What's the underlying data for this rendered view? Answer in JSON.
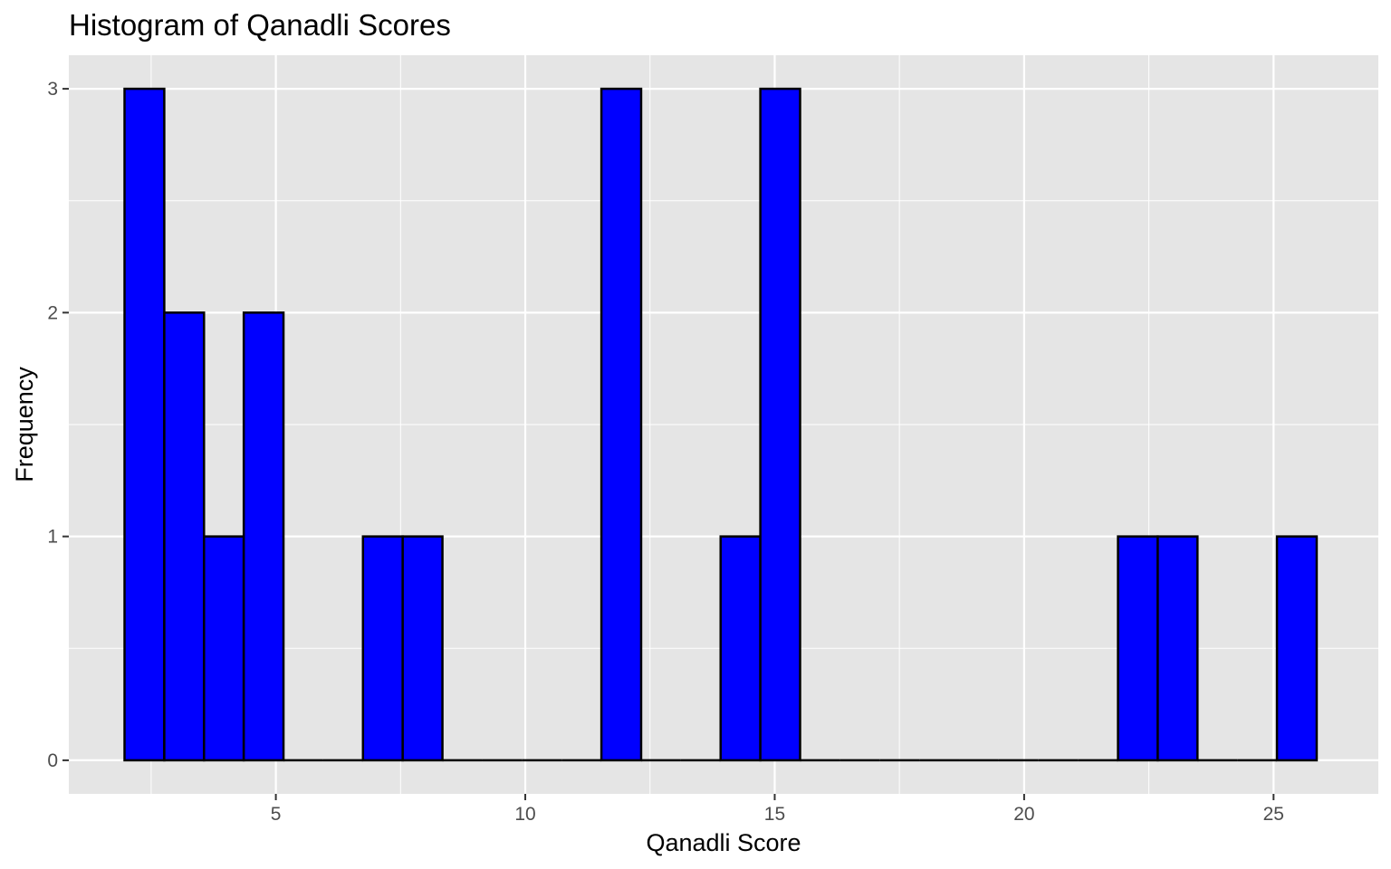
{
  "chart_data": {
    "type": "bar",
    "subtype": "histogram",
    "title": "Histogram of Qanadli Scores",
    "xlabel": "Qanadli Score",
    "ylabel": "Frequency",
    "xlim": [
      0.85,
      27.1
    ],
    "ylim": [
      -0.15,
      3.15
    ],
    "x_ticks": [
      5,
      10,
      15,
      20,
      25
    ],
    "y_ticks": [
      0,
      1,
      2,
      3
    ],
    "bin_width": 0.7966,
    "bins_start": 1.9667,
    "counts": [
      3,
      2,
      1,
      2,
      0,
      0,
      1,
      1,
      0,
      0,
      0,
      0,
      3,
      0,
      0,
      1,
      3,
      0,
      0,
      0,
      0,
      0,
      0,
      0,
      0,
      1,
      1,
      0,
      0,
      1
    ],
    "bar_fill": "#0000ff",
    "bar_outline": "#000000",
    "panel_background": "#e5e5e5",
    "grid": true,
    "grid_color": "#ffffff"
  }
}
